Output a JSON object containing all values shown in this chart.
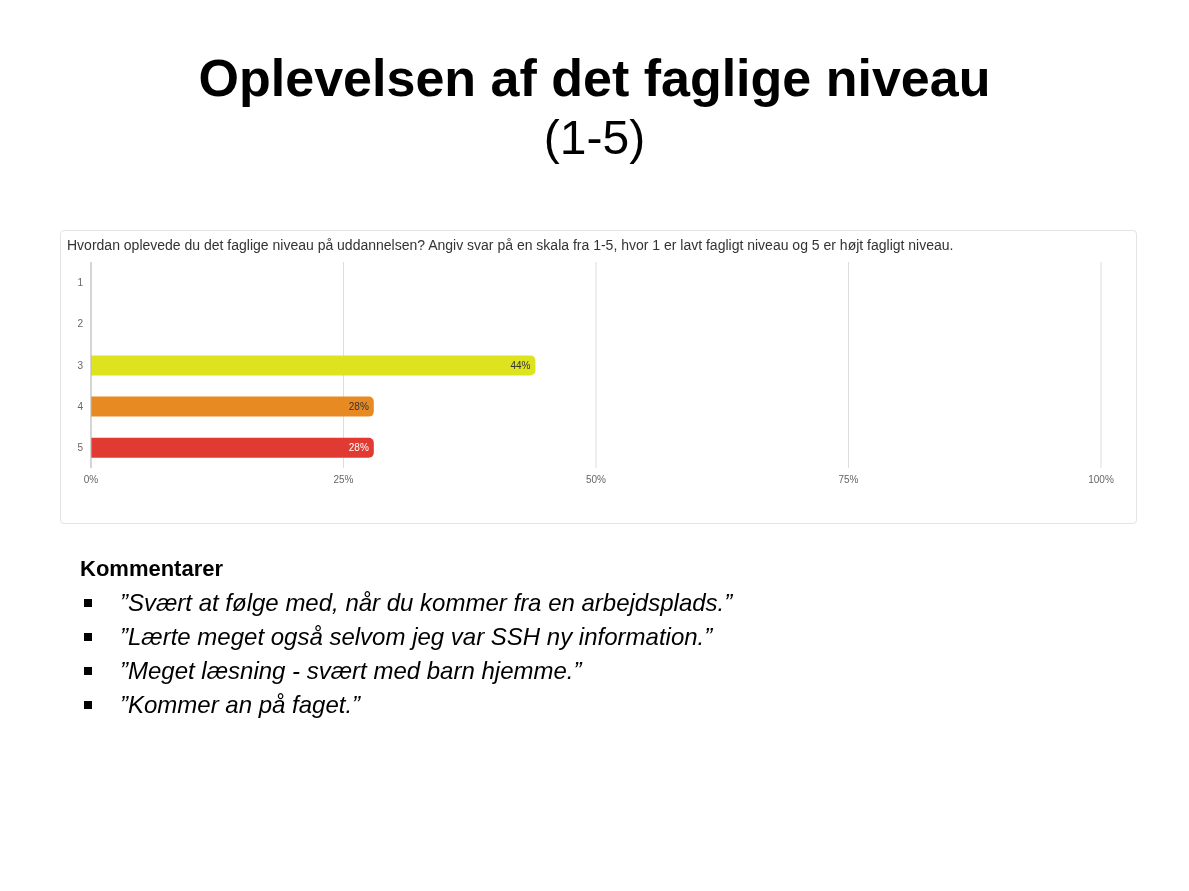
{
  "chart_data": {
    "type": "bar",
    "orientation": "horizontal",
    "title": "Oplevelsen af det faglige niveau",
    "subtitle": "(1-5)",
    "annotations": [
      "Hvordan oplevede du det faglige niveau på uddannelsen? Angiv svar på en skala fra 1-5, hvor 1 er lavt fagligt niveau og 5 er højt fagligt niveau.",
      "Kommentarer",
      "”Svært at følge med, når du kommer fra en arbejdsplads.”",
      "”Lærte meget også selvom jeg var SSH ny information.”",
      "”Meget læsning - svært med barn hjemme.”",
      "”Kommer an på faget.”"
    ],
    "categories": [
      "1",
      "2",
      "3",
      "4",
      "5"
    ],
    "values": [
      0,
      0,
      44,
      28,
      28
    ],
    "colors": [
      "#dde31f",
      "#dde31f",
      "#dde31f",
      "#e88a22",
      "#e03a33"
    ],
    "value_labels": [
      null,
      null,
      "44%",
      "28%",
      "28%"
    ],
    "xlim": [
      0,
      100
    ],
    "xticks": [
      {
        "value": 0,
        "label": "0%"
      },
      {
        "value": 25,
        "label": "25%"
      },
      {
        "value": 50,
        "label": "50%"
      },
      {
        "value": 75,
        "label": "75%"
      },
      {
        "value": 100,
        "label": "100%"
      }
    ],
    "grid": "x"
  }
}
